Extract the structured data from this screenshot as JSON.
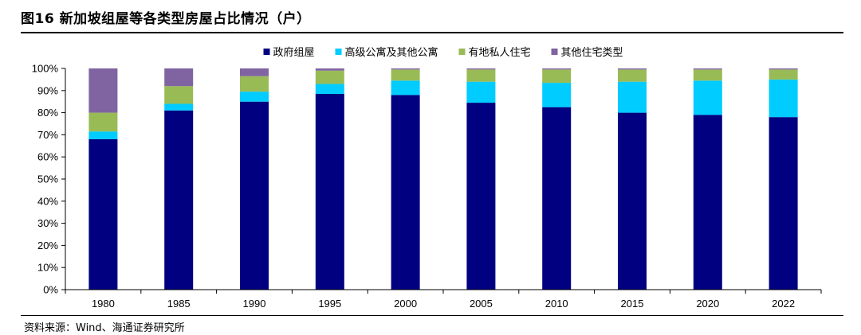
{
  "title": "图16  新加坡组屋等各类型房屋占比情况（户）",
  "source": "资料来源：Wind、海通证券研究所",
  "chart_data": {
    "type": "bar",
    "stacked": true,
    "categories": [
      "1980",
      "1985",
      "1990",
      "1995",
      "2000",
      "2005",
      "2010",
      "2015",
      "2020",
      "2022"
    ],
    "series": [
      {
        "name": "政府组屋",
        "color": "#000080",
        "values": [
          68,
          81,
          85,
          88.5,
          88,
          84.5,
          82.5,
          80,
          79,
          78
        ]
      },
      {
        "name": "高级公寓及其他公寓",
        "color": "#00CCFF",
        "values": [
          3.5,
          3,
          4.5,
          4.5,
          6.5,
          9.5,
          11,
          14,
          15.5,
          17
        ]
      },
      {
        "name": "有地私人住宅",
        "color": "#99BB55",
        "values": [
          8.5,
          8,
          7,
          6,
          5,
          5.5,
          6,
          5.5,
          5,
          4.5
        ]
      },
      {
        "name": "其他住宅类型",
        "color": "#8064A2",
        "values": [
          20,
          8,
          3.5,
          1,
          0.5,
          0.5,
          0.5,
          0.5,
          0.5,
          0.5
        ]
      }
    ],
    "y_tick_labels": [
      "0%",
      "10%",
      "20%",
      "30%",
      "40%",
      "50%",
      "60%",
      "70%",
      "80%",
      "90%",
      "100%"
    ],
    "ylim": [
      0,
      100
    ],
    "grid": false,
    "legend_position": "top"
  }
}
